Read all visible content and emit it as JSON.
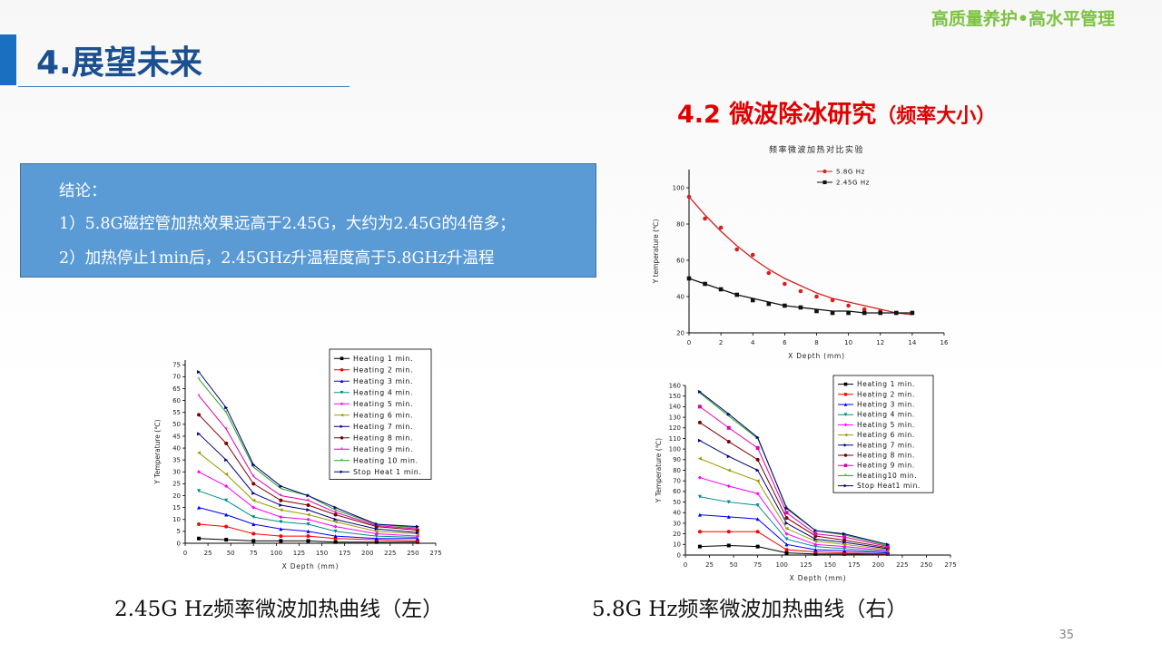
{
  "header": {
    "tagline": "高质量养护•高水平管理",
    "title": "4.展望未来",
    "subtitle": "4.2 微波除冰研究",
    "subtitle_paren": "（频率大小）",
    "title_bar_color": "#1b6fc1",
    "tagline_color": "#7dc242",
    "subtitle_color": "#e00000"
  },
  "conclusion": {
    "heading": "结论：",
    "line1": "1）5.8G磁控管加热效果远高于2.45G，大约为2.45G的4倍多；",
    "line2": "2）加热停止1min后，2.45GHz升温程度高于5.8GHz升温程",
    "background": "#5b9bd5"
  },
  "captions": {
    "left": "2.45G Hz频率微波加热曲线（左）",
    "right": "5.8G Hz频率微波加热曲线（右）"
  },
  "page_number": "35",
  "chart_data": [
    {
      "id": "freq-compare",
      "type": "line",
      "title": "频率微波加热对比实验",
      "xlabel": "X Depth (mm)",
      "ylabel": "Y temperature (℃)",
      "xlim": [
        0,
        16
      ],
      "ylim": [
        20,
        110
      ],
      "xticks": [
        0,
        2,
        4,
        6,
        8,
        10,
        12,
        14,
        16
      ],
      "yticks": [
        20,
        40,
        60,
        80,
        100
      ],
      "legend_position": "top-right",
      "series": [
        {
          "name": "5.8G Hz",
          "color": "#d42020",
          "marker": "circle",
          "x": [
            0,
            1,
            2,
            3,
            4,
            5,
            6,
            7,
            8,
            9,
            10,
            11,
            12,
            13,
            14
          ],
          "y": [
            95,
            83,
            78,
            66,
            63,
            53,
            47,
            43,
            40,
            38,
            35,
            33,
            32,
            31,
            31
          ],
          "fit": [
            95,
            85,
            76,
            68,
            61,
            55,
            50,
            46,
            42,
            39,
            37,
            35,
            33,
            31,
            30
          ]
        },
        {
          "name": "2.45G Hz",
          "color": "#111111",
          "marker": "square",
          "x": [
            0,
            1,
            2,
            3,
            4,
            5,
            6,
            7,
            8,
            9,
            10,
            11,
            12,
            13,
            14
          ],
          "y": [
            50,
            47,
            44,
            41,
            38,
            36,
            35,
            34,
            32,
            31,
            31,
            31,
            31,
            31,
            31
          ],
          "fit": [
            50,
            47,
            44,
            41,
            39,
            37,
            35,
            34,
            33,
            32,
            32,
            31,
            31,
            31,
            31
          ]
        }
      ]
    },
    {
      "id": "heating-245",
      "type": "line",
      "xlabel": "X Depth (mm)",
      "ylabel": "Y Temperature (℃)",
      "xlim": [
        0,
        275
      ],
      "ylim": [
        0,
        77
      ],
      "xticks": [
        0,
        25,
        50,
        75,
        100,
        125,
        150,
        175,
        200,
        225,
        250,
        275
      ],
      "yticks": [
        0,
        5,
        10,
        15,
        20,
        25,
        30,
        35,
        40,
        45,
        50,
        55,
        60,
        65,
        70,
        75
      ],
      "legend_position": "top-right",
      "x": [
        15,
        45,
        75,
        105,
        135,
        165,
        210,
        255
      ],
      "series": [
        {
          "name": "Heating 1 min.",
          "color": "#000000",
          "marker": "square",
          "y": [
            2,
            1.5,
            1,
            1,
            1,
            0.5,
            0.5,
            0.5
          ]
        },
        {
          "name": "Heating 2 min.",
          "color": "#ff0000",
          "marker": "circle",
          "y": [
            8,
            7,
            4,
            3,
            3,
            2,
            1.5,
            1
          ]
        },
        {
          "name": "Heating 3 min.",
          "color": "#0000ff",
          "marker": "triangle",
          "y": [
            15,
            12,
            8,
            6,
            5,
            3,
            2,
            2
          ]
        },
        {
          "name": "Heating 4 min.",
          "color": "#008b8b",
          "marker": "tri-down",
          "y": [
            22,
            18,
            11,
            9,
            8,
            5,
            3,
            2.5
          ]
        },
        {
          "name": "Heating 5 min.",
          "color": "#ff00ff",
          "marker": "diamond",
          "y": [
            30,
            24,
            15,
            11,
            10,
            7,
            4,
            3
          ]
        },
        {
          "name": "Heating 6 min.",
          "color": "#9a9a00",
          "marker": "tri-left",
          "y": [
            38,
            29,
            18,
            14,
            12,
            9,
            5,
            4
          ]
        },
        {
          "name": "Heating 7 min.",
          "color": "#000080",
          "marker": "tri-right",
          "y": [
            46,
            35,
            21,
            16,
            14,
            10,
            6,
            4.5
          ]
        },
        {
          "name": "Heating 8 min.",
          "color": "#800000",
          "marker": "circle",
          "y": [
            54,
            42,
            25,
            18,
            16,
            12,
            7,
            5.5
          ]
        },
        {
          "name": "Heating 9 min.",
          "color": "#e000b0",
          "marker": "star",
          "y": [
            62,
            48,
            28,
            20,
            18,
            13,
            7.5,
            6
          ]
        },
        {
          "name": "Heating 10 min.",
          "color": "#22a022",
          "marker": "star",
          "y": [
            69,
            55,
            32,
            23,
            20,
            14,
            8,
            6.5
          ]
        },
        {
          "name": "Stop Heat 1 min.",
          "color": "#00007a",
          "marker": "tri-right",
          "y": [
            72,
            57,
            33,
            24,
            20,
            15,
            8,
            7
          ]
        }
      ]
    },
    {
      "id": "heating-58",
      "type": "line",
      "xlabel": "X Depth (mm)",
      "ylabel": "Y Temperature (℃)",
      "xlim": [
        0,
        275
      ],
      "ylim": [
        0,
        160
      ],
      "xticks": [
        0,
        25,
        50,
        75,
        100,
        125,
        150,
        175,
        200,
        225,
        250,
        275
      ],
      "yticks": [
        0,
        10,
        20,
        30,
        40,
        50,
        60,
        70,
        80,
        90,
        100,
        110,
        120,
        130,
        140,
        150,
        160
      ],
      "legend_position": "top-right",
      "x": [
        15,
        45,
        75,
        105,
        135,
        165,
        210
      ],
      "series": [
        {
          "name": "Heating 1 min.",
          "color": "#000000",
          "marker": "square",
          "y": [
            8,
            9,
            8,
            2,
            1,
            1,
            1
          ]
        },
        {
          "name": "Heating 2 min.",
          "color": "#ff0000",
          "marker": "circle",
          "y": [
            22,
            22,
            22,
            5,
            3,
            2,
            1
          ]
        },
        {
          "name": "Heating 3 min.",
          "color": "#0000ff",
          "marker": "triangle",
          "y": [
            38,
            36,
            34,
            10,
            5,
            4,
            2
          ]
        },
        {
          "name": "Heating 4 min.",
          "color": "#008b8b",
          "marker": "tri-down",
          "y": [
            55,
            50,
            47,
            15,
            8,
            6,
            3
          ]
        },
        {
          "name": "Heating 5 min.",
          "color": "#ff00ff",
          "marker": "diamond",
          "y": [
            73,
            65,
            58,
            20,
            10,
            8,
            4
          ]
        },
        {
          "name": "Heating 6 min.",
          "color": "#9a9a00",
          "marker": "tri-left",
          "y": [
            91,
            80,
            70,
            25,
            13,
            10,
            5
          ]
        },
        {
          "name": "Heating 7 min.",
          "color": "#000080",
          "marker": "tri-right",
          "y": [
            108,
            93,
            80,
            30,
            15,
            12,
            6
          ]
        },
        {
          "name": "Heating 8 min.",
          "color": "#800000",
          "marker": "circle",
          "y": [
            125,
            107,
            90,
            35,
            18,
            14,
            7
          ]
        },
        {
          "name": "Heating 9 min.",
          "color": "#e000b0",
          "marker": "square",
          "y": [
            140,
            120,
            101,
            40,
            20,
            17,
            8
          ]
        },
        {
          "name": "Heating10 min.",
          "color": "#22a022",
          "marker": "star",
          "y": [
            153,
            131,
            110,
            45,
            23,
            19,
            9
          ]
        },
        {
          "name": "Stop Heat1 min.",
          "color": "#00007a",
          "marker": "tri-right",
          "y": [
            154,
            133,
            111,
            44,
            23,
            20,
            10
          ]
        }
      ]
    }
  ]
}
